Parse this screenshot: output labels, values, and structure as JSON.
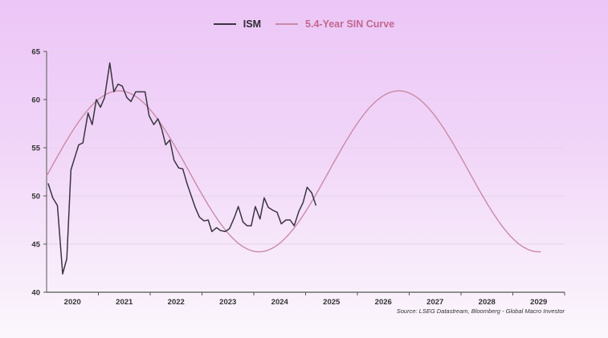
{
  "legend": {
    "items": [
      {
        "label": "ISM",
        "color": "#3a3440"
      },
      {
        "label": "5.4-Year SIN Curve",
        "color": "#c98aa8"
      }
    ]
  },
  "source": "Source: LSEG Datastream, Bloomberg - Global Macro Investor",
  "colors": {
    "background_top": "#ecc6f7",
    "background_bottom": "#fbf6fc",
    "ism_line": "#3a3440",
    "sin_line": "#c98aa8",
    "axis": "#555555",
    "gridline": "#e6d2ee"
  },
  "chart_data": {
    "type": "line",
    "title": "",
    "xlabel": "",
    "ylabel": "",
    "ylim": [
      40,
      65
    ],
    "xlim": [
      2020.0,
      2030.0
    ],
    "yticks": [
      40,
      45,
      50,
      55,
      60,
      65
    ],
    "xtick_labels": [
      "2020",
      "2021",
      "2022",
      "2023",
      "2024",
      "2025",
      "2026",
      "2027",
      "2028",
      "2029"
    ],
    "grid": {
      "horizontal": true,
      "vertical": false
    },
    "legend_position": "top-center",
    "series": [
      {
        "name": "ISM",
        "x": [
          2020.03,
          2020.12,
          2020.21,
          2020.31,
          2020.39,
          2020.47,
          2020.55,
          2020.62,
          2020.7,
          2020.8,
          2020.88,
          2020.96,
          2021.04,
          2021.12,
          2021.22,
          2021.3,
          2021.38,
          2021.46,
          2021.55,
          2021.63,
          2021.72,
          2021.81,
          2021.9,
          2021.98,
          2022.07,
          2022.15,
          2022.22,
          2022.3,
          2022.38,
          2022.46,
          2022.55,
          2022.63,
          2022.71,
          2022.78,
          2022.87,
          2022.95,
          2023.04,
          2023.12,
          2023.19,
          2023.28,
          2023.36,
          2023.45,
          2023.53,
          2023.62,
          2023.7,
          2023.79,
          2023.87,
          2023.95,
          2024.03,
          2024.12,
          2024.2,
          2024.28,
          2024.37,
          2024.45,
          2024.53,
          2024.62,
          2024.7,
          2024.78,
          2024.87,
          2024.95,
          2025.03,
          2025.12,
          2025.2
        ],
        "values": [
          51.3,
          49.8,
          49.0,
          41.9,
          43.5,
          52.7,
          54.1,
          55.3,
          55.5,
          58.6,
          57.4,
          60.0,
          59.2,
          60.2,
          63.8,
          60.8,
          61.6,
          61.4,
          60.2,
          59.8,
          60.8,
          60.8,
          60.8,
          58.3,
          57.4,
          58.0,
          57.0,
          55.3,
          55.8,
          53.7,
          52.9,
          52.8,
          51.3,
          50.2,
          48.8,
          47.8,
          47.4,
          47.5,
          46.3,
          46.7,
          46.4,
          46.3,
          46.6,
          47.7,
          48.9,
          47.3,
          46.9,
          46.9,
          48.9,
          47.6,
          49.8,
          48.8,
          48.5,
          48.3,
          47.1,
          47.5,
          47.5,
          46.9,
          48.4,
          49.3,
          50.9,
          50.3,
          49.0
        ]
      },
      {
        "name": "5.4-Year SIN Curve",
        "x": [
          2020.0,
          2020.5,
          2021.0,
          2021.5,
          2022.0,
          2022.5,
          2023.0,
          2023.5,
          2024.0,
          2024.5,
          2025.0,
          2025.5,
          2026.0,
          2026.5,
          2027.0,
          2027.5,
          2028.0,
          2028.5,
          2029.0,
          2029.5
        ],
        "values": [
          51.7,
          56.9,
          60.5,
          60.8,
          57.8,
          53.3,
          48.3,
          45.0,
          44.4,
          46.8,
          51.3,
          56.2,
          59.7,
          60.9,
          59.2,
          55.4,
          50.6,
          46.4,
          44.3,
          44.3
        ],
        "amplitude": 8.35,
        "center": 52.55,
        "period_years": 5.4,
        "peaks": [
          {
            "x": 2021.4,
            "y": 60.9
          },
          {
            "x": 2026.8,
            "y": 60.9
          }
        ],
        "troughs": [
          {
            "x": 2024.1,
            "y": 44.2
          }
        ]
      }
    ],
    "annotations": [
      "Source: LSEG Datastream, Bloomberg - Global Macro Investor"
    ]
  }
}
